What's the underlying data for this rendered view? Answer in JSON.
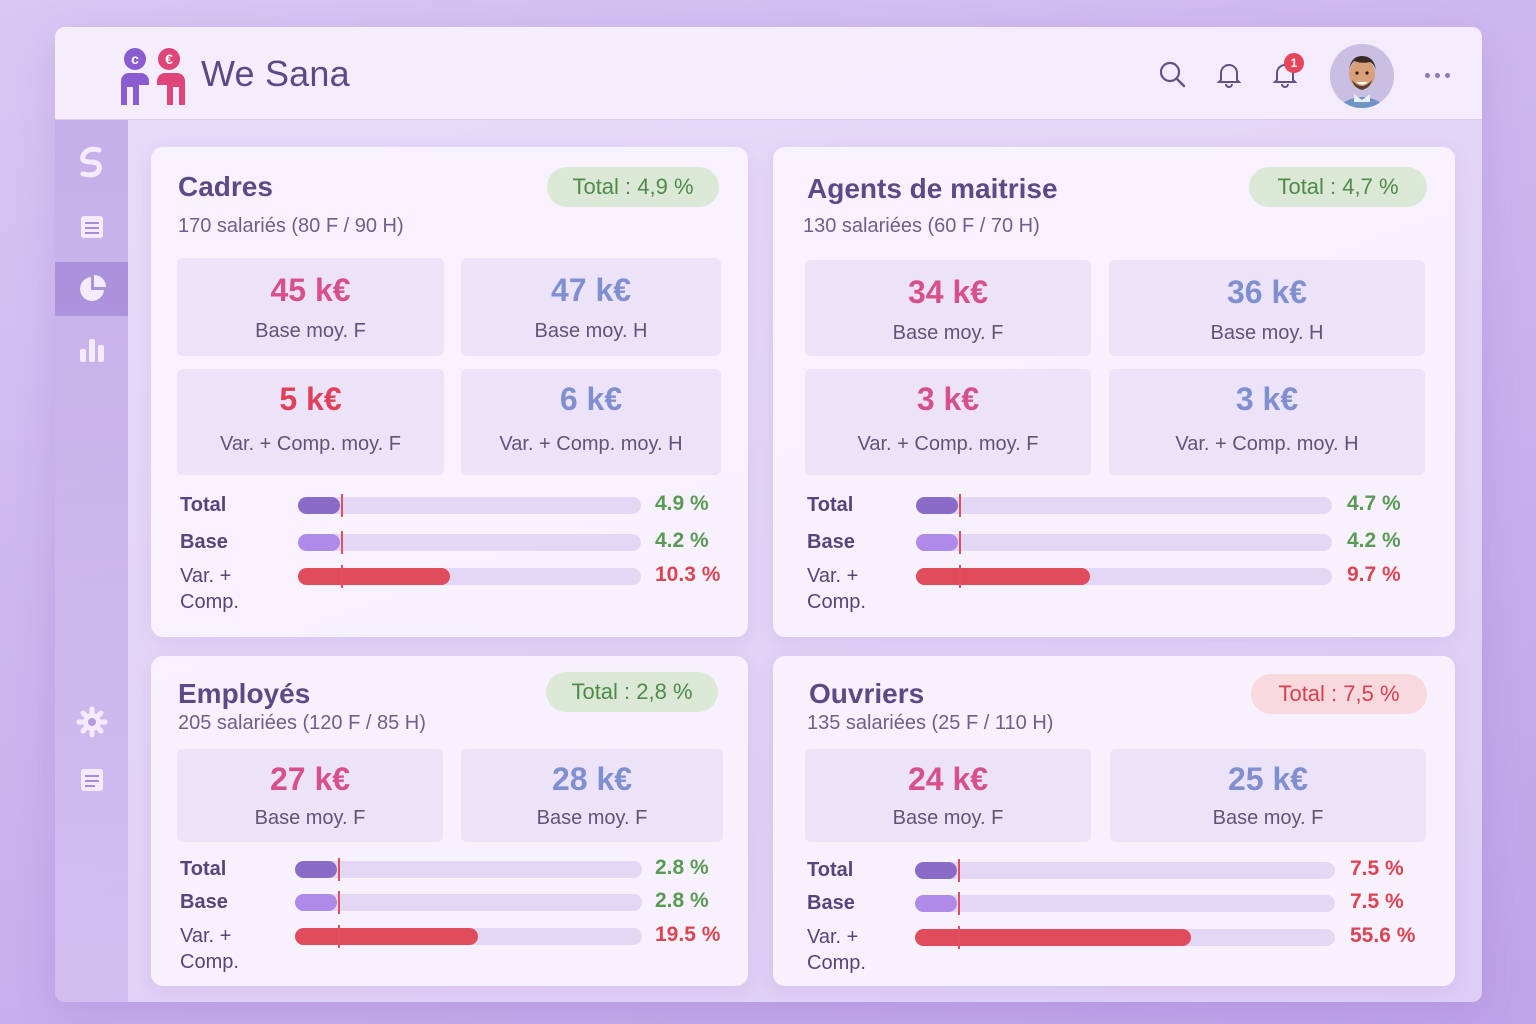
{
  "app": {
    "brand": "We Sana",
    "notif_count": "1",
    "colors": {
      "accent": "#8a6cc8",
      "positive": "#5b9a55",
      "negative": "#dc4452",
      "female": "#d8508a",
      "male": "#7f8fd0"
    }
  },
  "topbar": {
    "icons": [
      "search-icon",
      "bell-icon",
      "bell-notification-icon",
      "avatar",
      "more-icon"
    ]
  },
  "sidebar": {
    "items": [
      "swirl-logo-icon",
      "document-icon",
      "pie-chart-icon",
      "bar-chart-icon"
    ],
    "bottom": [
      "gear-icon",
      "notes-icon"
    ],
    "active": "pie-chart-icon"
  },
  "cards": [
    {
      "title": "Cadres",
      "subtitle": "170 salariés (80 F / 90 H)",
      "total": "Total : 4,9 %",
      "total_status": "good",
      "stats": [
        {
          "value": "45 k€",
          "label": "Base moy. F"
        },
        {
          "value": "47 k€",
          "label": "Base moy. H"
        },
        {
          "value": "5 k€",
          "label": "Var. + Comp. moy. F"
        },
        {
          "value": "6 k€",
          "label": "Var. + Comp. moy. H"
        }
      ],
      "bars": [
        {
          "label": "Total",
          "pct": "4.9 %",
          "value": 4.9
        },
        {
          "label": "Base",
          "pct": "4.2 %",
          "value": 4.2
        },
        {
          "label": "Var. + Comp.",
          "pct": "10.3 %",
          "value": 10.3
        }
      ]
    },
    {
      "title": "Agents de maitrise",
      "subtitle": "130 salariées (60 F / 70 H)",
      "total": "Total : 4,7 %",
      "total_status": "good",
      "stats": [
        {
          "value": "34 k€",
          "label": "Base moy. F"
        },
        {
          "value": "36 k€",
          "label": "Base moy. H"
        },
        {
          "value": "3 k€",
          "label": "Var. + Comp. moy. F"
        },
        {
          "value": "3 k€",
          "label": "Var. + Comp. moy. H"
        }
      ],
      "bars": [
        {
          "label": "Total",
          "pct": "4.7 %",
          "value": 4.7
        },
        {
          "label": "Base",
          "pct": "4.2 %",
          "value": 4.2
        },
        {
          "label": "Var. + Comp.",
          "pct": "9.7 %",
          "value": 9.7
        }
      ]
    },
    {
      "title": "Employés",
      "subtitle": "205 salariées (120 F / 85 H)",
      "total": "Total : 2,8 %",
      "total_status": "good",
      "stats": [
        {
          "value": "27 k€",
          "label": "Base moy. F"
        },
        {
          "value": "28 k€",
          "label": "Base moy. F"
        }
      ],
      "bars": [
        {
          "label": "Total",
          "pct": "2.8 %",
          "value": 2.8
        },
        {
          "label": "Base",
          "pct": "2.8 %",
          "value": 2.8
        },
        {
          "label": "Var. + Comp.",
          "pct": "19.5 %",
          "value": 19.5
        }
      ]
    },
    {
      "title": "Ouvriers",
      "subtitle": "135 salariées (25 F / 110 H)",
      "total": "Total : 7,5 %",
      "total_status": "bad",
      "stats": [
        {
          "value": "24 k€",
          "label": "Base moy. F"
        },
        {
          "value": "25 k€",
          "label": "Base moy. F"
        }
      ],
      "bars": [
        {
          "label": "Total",
          "pct": "7.5 %",
          "value": 7.5
        },
        {
          "label": "Base",
          "pct": "7.5 %",
          "value": 7.5
        },
        {
          "label": "Var. + Comp.",
          "pct": "55.6 %",
          "value": 55.6
        }
      ]
    }
  ]
}
